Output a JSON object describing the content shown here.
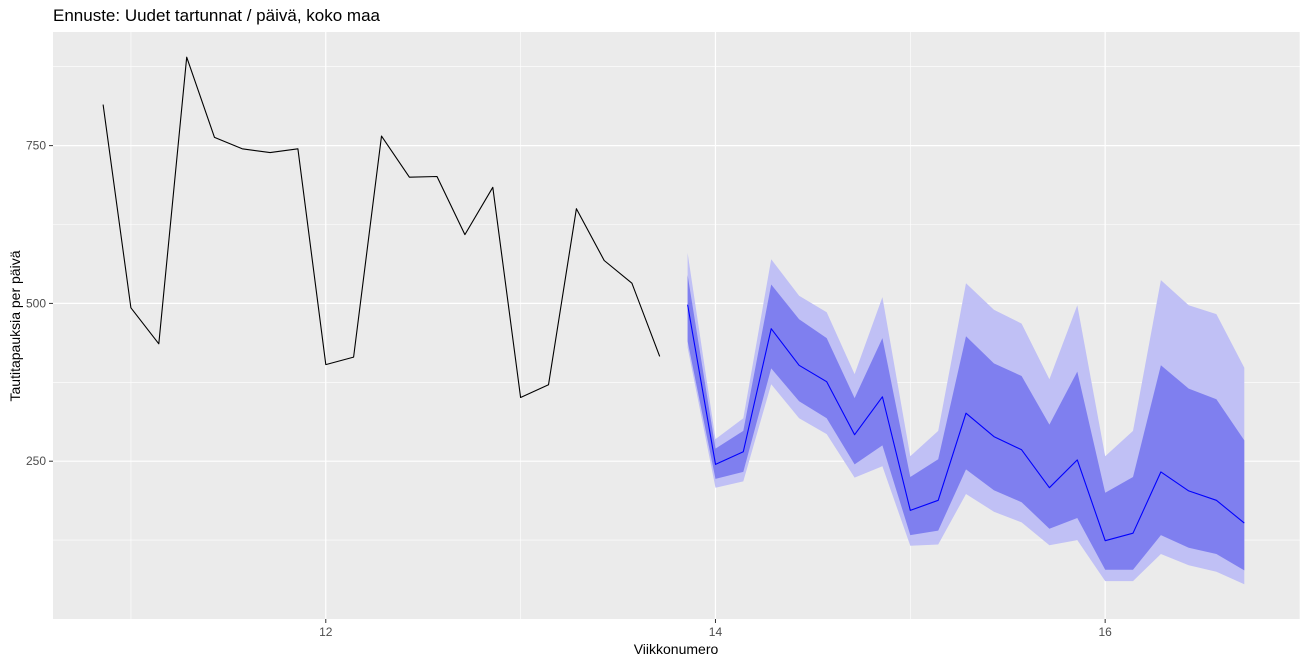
{
  "chart_data": {
    "type": "line",
    "title": "Ennuste: Uudet tartunnat / päivä, koko maa",
    "xlabel": "Viikkonumero",
    "ylabel": "Tautitapauksia per päivä",
    "xlim": [
      10.6,
      17.0
    ],
    "ylim": [
      0,
      930
    ],
    "x_ticks": [
      12,
      14,
      16
    ],
    "y_ticks": [
      250,
      500,
      750
    ],
    "grid": true,
    "legend": "none",
    "colors": {
      "panel": "#ebebeb",
      "grid": "#ffffff",
      "observed": "#000000",
      "forecast_mean": "#0000ff",
      "band_80": "#7f7fef",
      "band_95": "#c0c0f5"
    },
    "observed": {
      "x": [
        10.857,
        11.0,
        11.143,
        11.286,
        11.429,
        11.571,
        11.714,
        11.857,
        12.0,
        12.143,
        12.286,
        12.429,
        12.571,
        12.714,
        12.857,
        13.0,
        13.143,
        13.286,
        13.429,
        13.571,
        13.714
      ],
      "y": [
        815,
        493,
        436,
        890,
        763,
        745,
        739,
        745,
        403,
        415,
        765,
        700,
        701,
        609,
        684,
        351,
        371,
        650,
        568,
        532,
        416
      ]
    },
    "forecast": {
      "x": [
        13.857,
        14.0,
        14.143,
        14.286,
        14.429,
        14.571,
        14.714,
        14.857,
        15.0,
        15.143,
        15.286,
        15.429,
        15.571,
        15.714,
        15.857,
        16.0,
        16.143,
        16.286,
        16.429,
        16.571,
        16.714
      ],
      "mean": [
        498,
        245,
        265,
        460,
        402,
        376,
        292,
        352,
        172,
        188,
        326,
        289,
        268,
        208,
        252,
        124,
        136,
        233,
        203,
        188,
        152
      ],
      "lo80": [
        440,
        222,
        233,
        397,
        345,
        318,
        245,
        275,
        133,
        140,
        237,
        204,
        185,
        143,
        160,
        78,
        78,
        133,
        113,
        103,
        77
      ],
      "hi80": [
        545,
        270,
        298,
        530,
        475,
        445,
        350,
        445,
        225,
        253,
        448,
        405,
        385,
        308,
        392,
        200,
        225,
        402,
        365,
        348,
        283
      ],
      "lo95": [
        430,
        208,
        218,
        372,
        318,
        293,
        224,
        242,
        116,
        118,
        198,
        170,
        153,
        117,
        125,
        60,
        60,
        103,
        85,
        75,
        55
      ],
      "hi95": [
        580,
        285,
        318,
        570,
        512,
        486,
        388,
        510,
        258,
        298,
        532,
        490,
        468,
        380,
        497,
        258,
        298,
        537,
        497,
        483,
        398
      ]
    }
  }
}
